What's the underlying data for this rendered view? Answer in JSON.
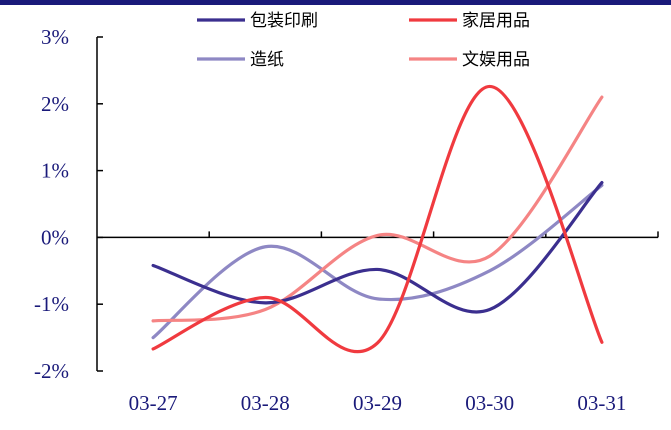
{
  "chart_data": {
    "type": "line",
    "title": "",
    "xlabel": "",
    "ylabel": "",
    "categories": [
      "03-27",
      "03-28",
      "03-29",
      "03-30",
      "03-31"
    ],
    "y_ticks": [
      "3%",
      "2%",
      "1%",
      "0%",
      "-1%",
      "-2%"
    ],
    "y_tick_values": [
      3,
      2,
      1,
      0,
      -1,
      -2
    ],
    "ylim": [
      -2,
      3
    ],
    "unit": "%",
    "grid": false,
    "smooth": true,
    "legend_position": "top",
    "series": [
      {
        "name": "包装印刷",
        "color": "#3b2f8f",
        "values": [
          -0.42,
          -0.98,
          -0.48,
          -1.08,
          0.82
        ]
      },
      {
        "name": "家居用品",
        "color": "#f03a3f",
        "values": [
          -1.67,
          -0.9,
          -1.58,
          2.26,
          -1.57
        ]
      },
      {
        "name": "造纸",
        "color": "#8e88c4",
        "values": [
          -1.5,
          -0.14,
          -0.92,
          -0.5,
          0.78
        ]
      },
      {
        "name": "文娱用品",
        "color": "#f58484",
        "values": [
          -1.25,
          -1.08,
          0.03,
          -0.28,
          2.1
        ]
      }
    ]
  }
}
